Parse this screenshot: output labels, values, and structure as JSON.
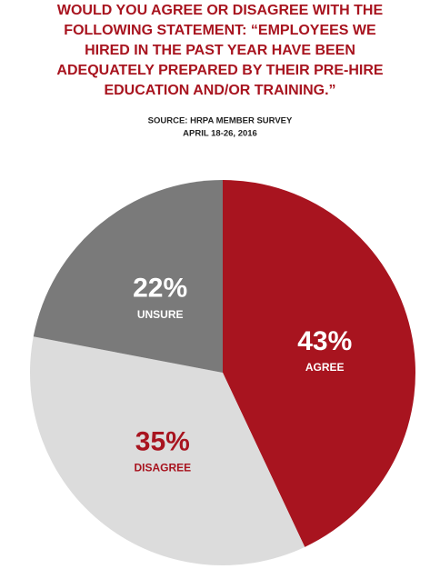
{
  "chart_data": {
    "type": "pie",
    "title": [
      "WOULD YOU AGREE OR DISAGREE WITH THE",
      "FOLLOWING STATEMENT: “EMPLOYEES WE",
      "HIRED IN THE PAST YEAR HAVE BEEN",
      "ADEQUATELY PREPARED BY THEIR PRE-HIRE",
      "EDUCATION AND/OR TRAINING.”"
    ],
    "subtitle": [
      "SOURCE: HRPA MEMBER SURVEY",
      "APRIL 18-26, 2016"
    ],
    "categories": [
      "AGREE",
      "DISAGREE",
      "UNSURE"
    ],
    "values": [
      43,
      35,
      22
    ],
    "value_labels": [
      "43%",
      "35%",
      "22%"
    ],
    "colors": [
      "#a8141f",
      "#dcdcdc",
      "#7a7a7a"
    ],
    "label_colors": [
      "#ffffff",
      "#a8141f",
      "#ffffff"
    ]
  }
}
